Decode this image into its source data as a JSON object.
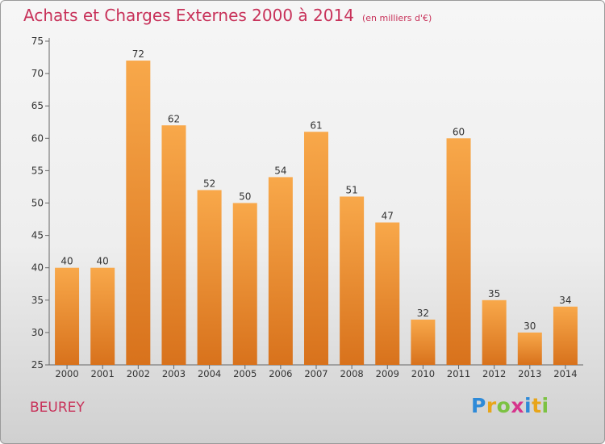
{
  "title": "Achats et Charges Externes 2000 à 2014",
  "subtitle": "(en milliers d'€)",
  "place": "BEUREY",
  "logo": {
    "letters": [
      "P",
      "r",
      "o",
      "x",
      "i",
      "t",
      "i"
    ],
    "colors": [
      "#2e8ad8",
      "#e8a51a",
      "#7cc242",
      "#d6348c",
      "#2e8ad8",
      "#e8a51a",
      "#7cc242"
    ]
  },
  "chart_data": {
    "type": "bar",
    "categories": [
      "2000",
      "2001",
      "2002",
      "2003",
      "2004",
      "2005",
      "2006",
      "2007",
      "2008",
      "2009",
      "2010",
      "2011",
      "2012",
      "2013",
      "2014"
    ],
    "values": [
      40,
      40,
      72,
      62,
      52,
      50,
      54,
      61,
      51,
      47,
      32,
      60,
      35,
      30,
      34
    ],
    "ylim": [
      25,
      75
    ],
    "yticks": [
      25,
      30,
      35,
      40,
      45,
      50,
      55,
      60,
      65,
      70,
      75
    ],
    "grid": false,
    "bar_color": "#f0902e",
    "title": "Achats et Charges Externes 2000 à 2014",
    "xlabel": "",
    "ylabel": ""
  }
}
